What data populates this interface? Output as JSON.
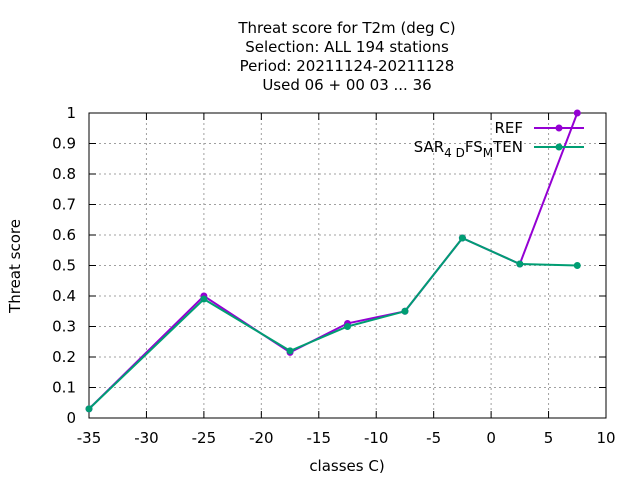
{
  "chart_data": {
    "type": "line",
    "title": [
      "Threat score  for T2m (deg C)",
      "Selection: ALL    194 stations",
      "Period: 20211124-20211128",
      "Used  06 + 00 03 ... 36"
    ],
    "xlabel": "classes C)",
    "ylabel": "Threat score",
    "xlim": [
      -35,
      10
    ],
    "ylim": [
      0,
      1
    ],
    "xticks": [
      "-35",
      "-30",
      "-25",
      "-20",
      "-15",
      "-10",
      "-5",
      "0",
      "5",
      "10"
    ],
    "xtick_values": [
      -35,
      -30,
      -25,
      -20,
      -15,
      -10,
      -5,
      0,
      5,
      10
    ],
    "yticks": [
      "0",
      "0.1",
      "0.2",
      "0.3",
      "0.4",
      "0.5",
      "0.6",
      "0.7",
      "0.8",
      "0.9",
      "1"
    ],
    "ytick_values": [
      0,
      0.1,
      0.2,
      0.3,
      0.4,
      0.5,
      0.6,
      0.7,
      0.8,
      0.9,
      1
    ],
    "grid": true,
    "legend_position": "top-right",
    "x": [
      -35,
      -25,
      -17.5,
      -12.5,
      -7.5,
      -2.5,
      2.5,
      7.5
    ],
    "series": [
      {
        "name": "REF",
        "color": "#9400d3",
        "values": [
          0.03,
          0.4,
          0.215,
          0.31,
          0.35,
          0.59,
          0.505,
          1.0
        ]
      },
      {
        "name": "SAR",
        "name_parts": [
          {
            "text": "SAR",
            "sub": false
          },
          {
            "text": "4 D",
            "sub": true
          },
          {
            "text": "FS",
            "sub": false
          },
          {
            "text": "M",
            "sub": true
          },
          {
            "text": "TEN",
            "sub": false
          }
        ],
        "color": "#009e73",
        "values": [
          0.03,
          0.39,
          0.22,
          0.3,
          0.35,
          0.59,
          0.505,
          0.5
        ]
      }
    ]
  }
}
